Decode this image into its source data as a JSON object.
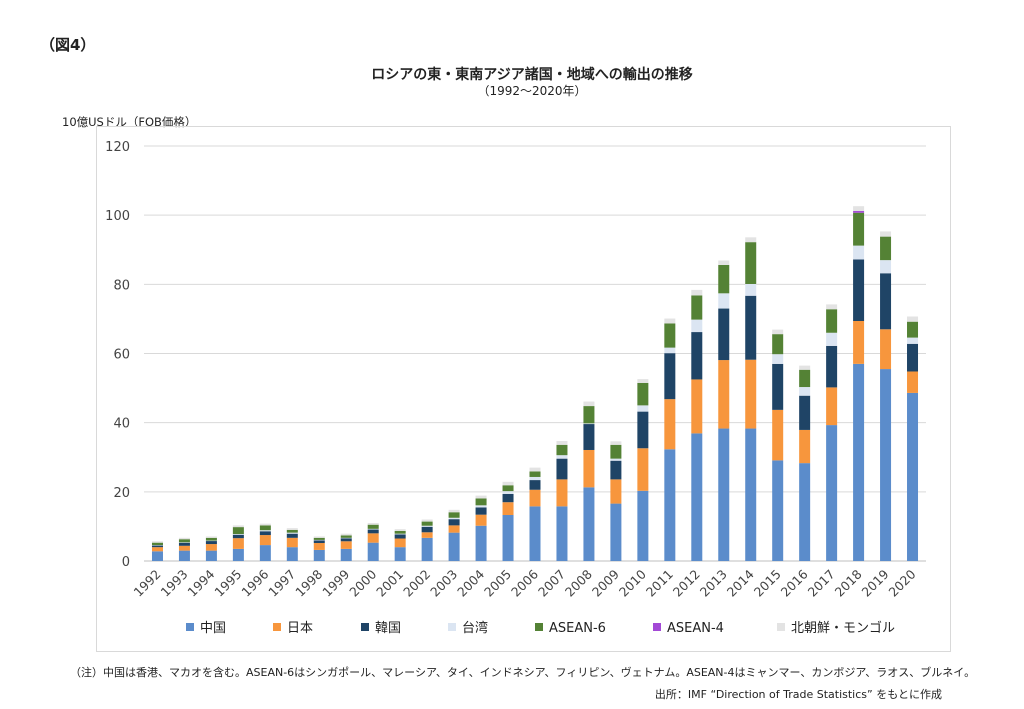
{
  "figure_label": "（図4）",
  "title": "ロシアの東・東南アジア諸国・地域への輸出の推移",
  "subtitle": "（1992～2020年）",
  "unit_label": "10億USドル（FOB価格）",
  "note": "（注）中国は香港、マカオを含む。ASEAN-6はシンガポール、マレーシア、タイ、インドネシア、フィリピン、ヴェトナム。ASEAN-4はミャンマー、カンボジア、ラオス、ブルネイ。",
  "source": "出所：IMF “Direction of Trade Statistics” をもとに作成",
  "chart_data": {
    "type": "bar",
    "stacked": true,
    "categories": [
      "1992",
      "1993",
      "1994",
      "1995",
      "1996",
      "1997",
      "1998",
      "1999",
      "2000",
      "2001",
      "2002",
      "2003",
      "2004",
      "2005",
      "2006",
      "2007",
      "2008",
      "2009",
      "2010",
      "2011",
      "2012",
      "2013",
      "2014",
      "2015",
      "2016",
      "2017",
      "2018",
      "2019",
      "2020"
    ],
    "ylim": [
      0,
      120
    ],
    "yticks": [
      0,
      20,
      40,
      60,
      80,
      100,
      120
    ],
    "grid": true,
    "legend_position": "bottom",
    "series": [
      {
        "name": "中国",
        "color": "#5b8ccb",
        "values": [
          2.8,
          3.0,
          3.0,
          3.5,
          4.6,
          4.0,
          3.2,
          3.5,
          5.3,
          4.0,
          6.7,
          8.2,
          10.2,
          13.3,
          15.8,
          15.8,
          21.3,
          16.6,
          20.3,
          32.3,
          36.9,
          38.3,
          38.3,
          29.1,
          28.3,
          39.3,
          57.0,
          55.5,
          48.6
        ]
      },
      {
        "name": "日本",
        "color": "#f7963d",
        "values": [
          1.2,
          1.4,
          1.9,
          3.1,
          2.9,
          2.7,
          2.0,
          2.2,
          2.7,
          2.5,
          1.6,
          2.1,
          3.2,
          3.7,
          4.8,
          7.8,
          10.8,
          7.0,
          12.3,
          14.5,
          15.6,
          19.8,
          19.9,
          14.6,
          9.6,
          10.9,
          12.4,
          11.5,
          6.2
        ]
      },
      {
        "name": "韓国",
        "color": "#1f4466",
        "values": [
          0.5,
          0.9,
          0.9,
          1.0,
          1.1,
          1.2,
          0.8,
          0.9,
          1.1,
          1.2,
          1.6,
          1.8,
          2.1,
          2.4,
          2.8,
          6.0,
          7.5,
          5.4,
          10.6,
          13.3,
          13.7,
          14.9,
          18.5,
          13.3,
          9.9,
          12.0,
          17.8,
          16.2,
          8.0
        ]
      },
      {
        "name": "台湾",
        "color": "#dbe5f2",
        "values": [
          0.1,
          0.1,
          0.1,
          0.2,
          0.3,
          0.3,
          0.1,
          0.1,
          0.2,
          0.2,
          0.3,
          0.4,
          0.6,
          0.8,
          0.9,
          1.0,
          0.2,
          0.6,
          1.8,
          1.6,
          3.6,
          4.4,
          3.4,
          2.8,
          2.5,
          3.8,
          4.0,
          3.8,
          1.8
        ]
      },
      {
        "name": "ASEAN-6",
        "color": "#548235",
        "values": [
          0.7,
          0.9,
          0.8,
          2.0,
          1.4,
          0.8,
          0.6,
          0.7,
          1.2,
          0.8,
          1.2,
          1.6,
          2.0,
          1.7,
          1.6,
          3.0,
          5.0,
          4.0,
          6.5,
          7.0,
          7.0,
          8.2,
          12.1,
          5.8,
          5.0,
          6.8,
          9.5,
          6.8,
          4.6
        ]
      },
      {
        "name": "ASEAN-4",
        "color": "#a349d6",
        "values": [
          0,
          0,
          0,
          0,
          0,
          0,
          0,
          0,
          0,
          0,
          0,
          0,
          0,
          0,
          0,
          0,
          0,
          0,
          0,
          0,
          0,
          0,
          0,
          0,
          0,
          0,
          0.5,
          0,
          0
        ]
      },
      {
        "name": "北朝鮮・モンゴル",
        "color": "#e3e3e3",
        "values": [
          0.4,
          0.4,
          0.4,
          0.5,
          0.5,
          0.5,
          0.4,
          0.5,
          0.5,
          0.5,
          0.6,
          0.7,
          0.8,
          1.0,
          1.1,
          1.1,
          1.3,
          1.0,
          1.1,
          1.4,
          1.6,
          1.3,
          1.4,
          1.3,
          1.2,
          1.4,
          1.4,
          1.5,
          1.5
        ]
      }
    ]
  }
}
